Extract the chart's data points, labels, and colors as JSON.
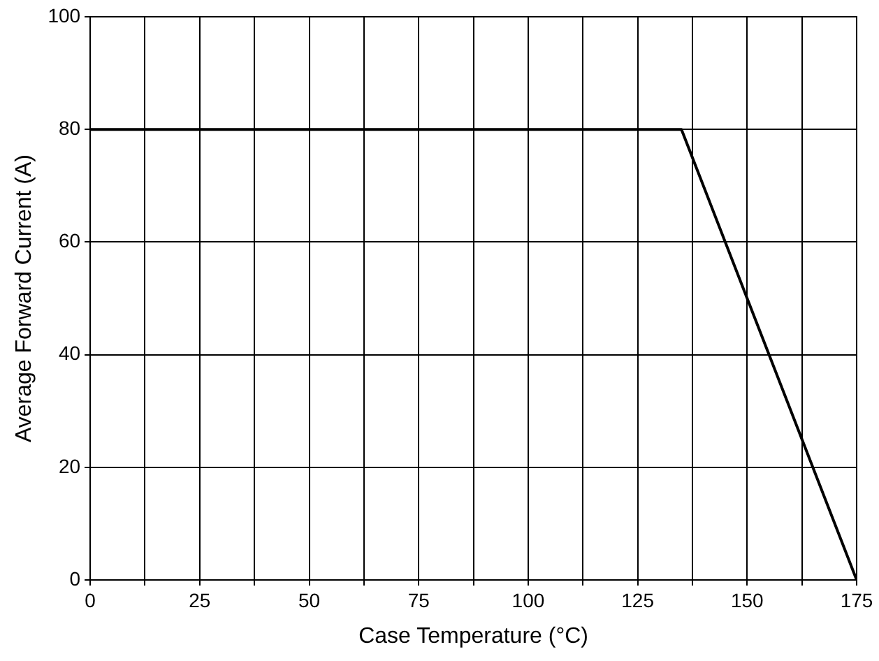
{
  "chart_data": {
    "type": "line",
    "xlabel": "Case Temperature (°C)",
    "ylabel": "Average Forward Current (A)",
    "x": [
      0,
      135,
      175
    ],
    "series": [
      {
        "color": "#000000",
        "values": [
          80,
          80,
          0
        ]
      }
    ],
    "xlim": [
      0,
      175
    ],
    "ylim": [
      0,
      100
    ],
    "xticks": [
      0,
      {
        "value": 12.5,
        "label": null
      },
      25,
      {
        "value": 37.5,
        "label": null
      },
      50,
      {
        "value": 62.5,
        "label": null
      },
      75,
      {
        "value": 87.5,
        "label": null
      },
      100,
      {
        "value": 112.5,
        "label": null
      },
      125,
      {
        "value": 137.5,
        "label": null
      },
      150,
      {
        "value": 162.5,
        "label": null
      },
      175
    ],
    "yticks": [
      0,
      20,
      40,
      60,
      80,
      100
    ],
    "grid": true,
    "legend": false,
    "marker": "none",
    "line_style": "solid"
  }
}
